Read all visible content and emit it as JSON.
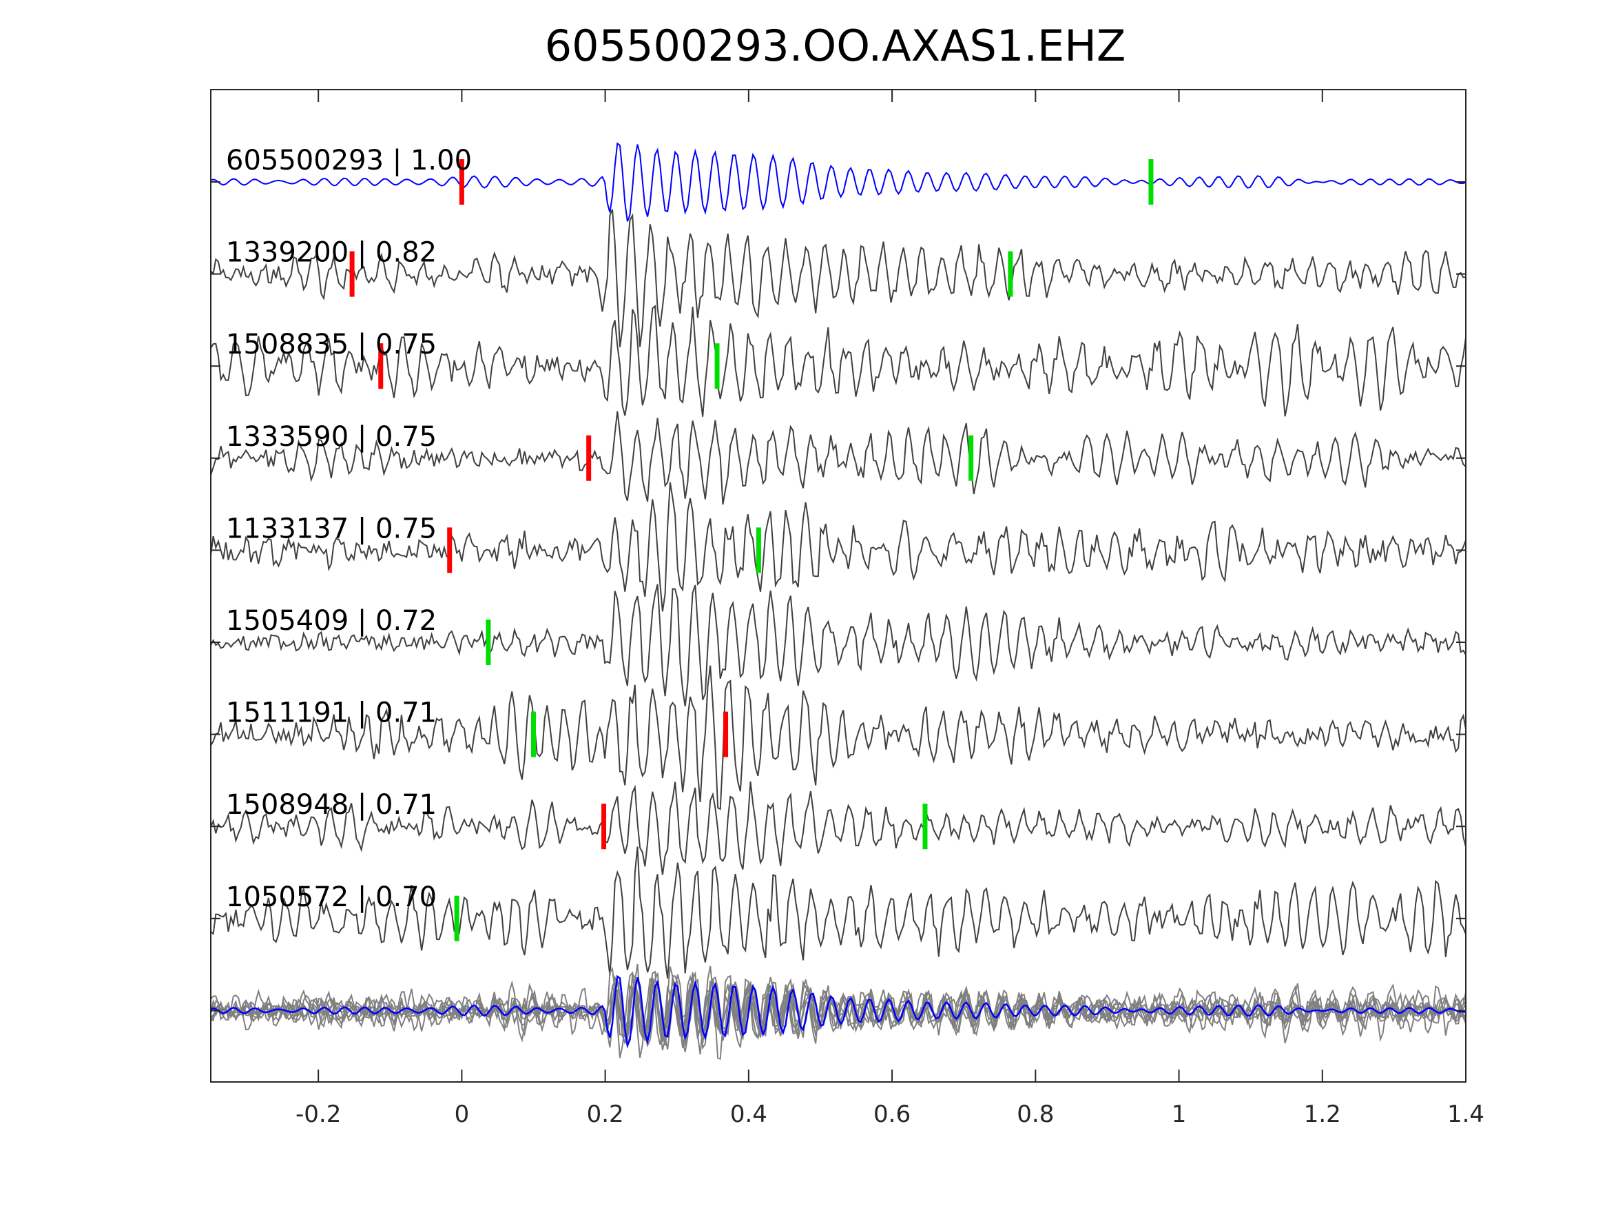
{
  "chart_data": {
    "type": "line",
    "title": "605500293.OO.AXAS1.EHZ",
    "xlabel": "",
    "ylabel": "",
    "xlim": [
      -0.35,
      1.4
    ],
    "xticks": [
      -0.2,
      0,
      0.2,
      0.4,
      0.6,
      0.8,
      1,
      1.2,
      1.4
    ],
    "xtick_labels": [
      "-0.2",
      "0",
      "0.2",
      "0.4",
      "0.6",
      "0.8",
      "1",
      "1.2",
      "1.4"
    ],
    "grid": false,
    "colors": {
      "template": "#0000ff",
      "trace": "#404040",
      "stack": "#808080",
      "pick_p": "#ff0000",
      "pick_s": "#00dd00"
    },
    "traces": [
      {
        "label": "605500293 | 1.00",
        "red_pick": 0.0,
        "green_pick": 0.961
      },
      {
        "label": "1339200 | 0.82",
        "red_pick": -0.153,
        "green_pick": 0.765
      },
      {
        "label": "1508835 | 0.75",
        "red_pick": -0.113,
        "green_pick": 0.356
      },
      {
        "label": "1333590 | 0.75",
        "red_pick": 0.177,
        "green_pick": 0.71
      },
      {
        "label": "1133137 | 0.75",
        "red_pick": -0.017,
        "green_pick": 0.414
      },
      {
        "label": "1505409 | 0.72",
        "red_pick": null,
        "green_pick": 0.037
      },
      {
        "label": "1511191 | 0.71",
        "red_pick": 0.368,
        "green_pick": 0.1
      },
      {
        "label": "1508948 | 0.71",
        "red_pick": 0.198,
        "green_pick": 0.646
      },
      {
        "label": "1050572 | 0.70",
        "red_pick": null,
        "green_pick": -0.007
      }
    ]
  }
}
